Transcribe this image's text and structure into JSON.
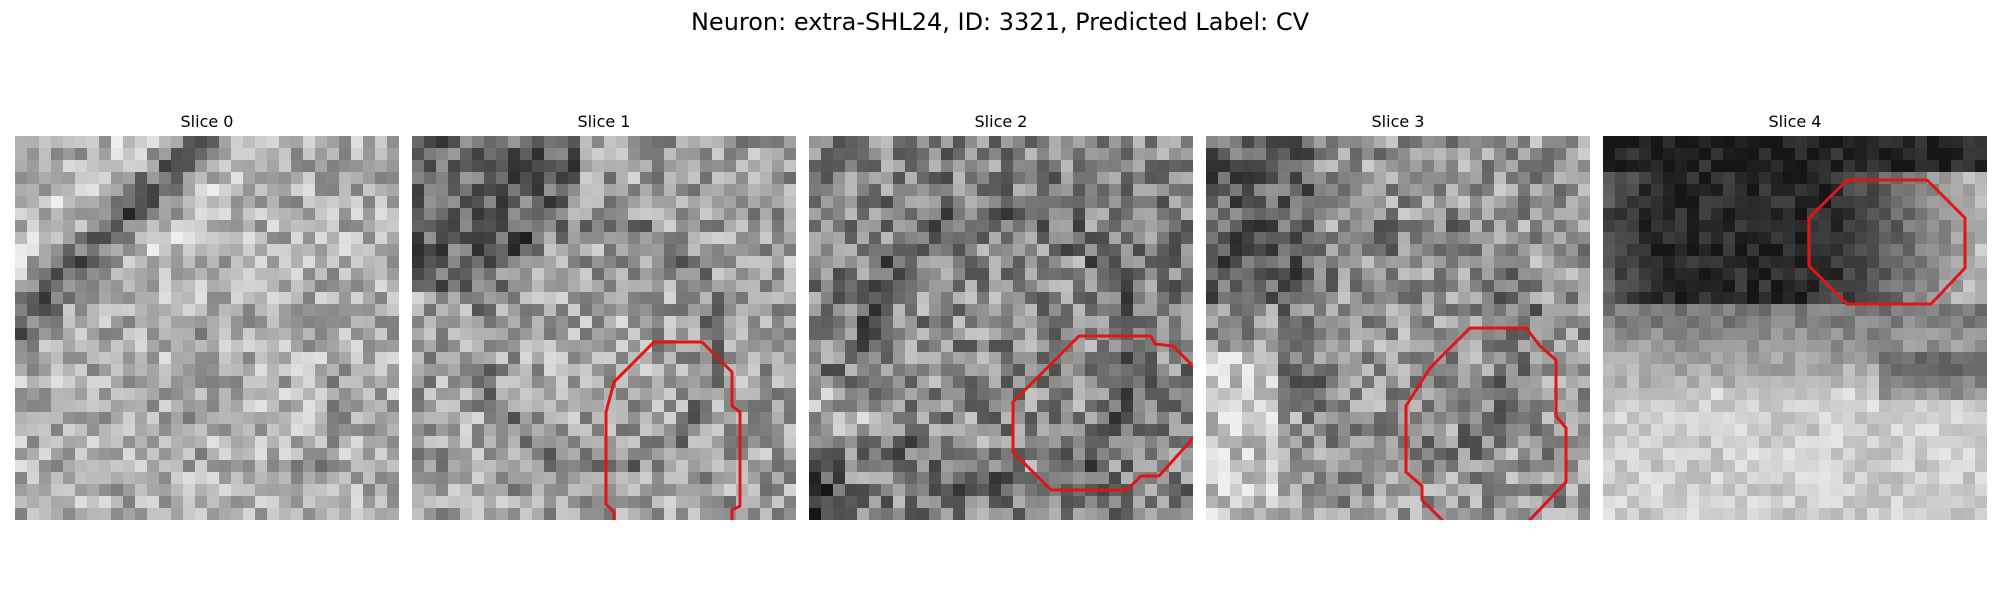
{
  "figure": {
    "title": "Neuron: extra-SHL24, ID: 3321, Predicted Label: CV",
    "contour_color": "#e31414"
  },
  "panels": [
    {
      "title": "Slice 0"
    },
    {
      "title": "Slice 1"
    },
    {
      "title": "Slice 2"
    },
    {
      "title": "Slice 3"
    },
    {
      "title": "Slice 4"
    }
  ]
}
